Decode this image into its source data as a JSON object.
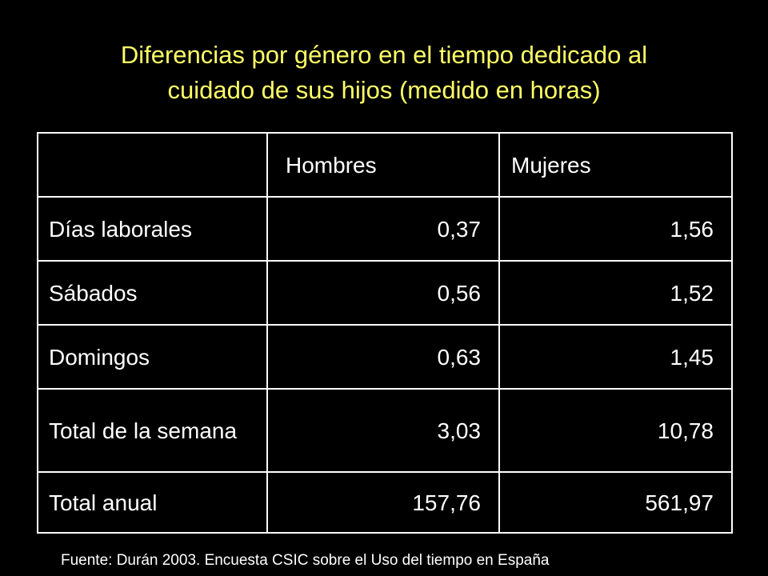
{
  "title": {
    "line1": "Diferencias por género en el tiempo dedicado al",
    "line2": "cuidado de sus hijos (medido en horas)"
  },
  "table": {
    "header": {
      "corner": "",
      "men": "Hombres",
      "women": "Mujeres"
    },
    "rows": [
      {
        "label": "Días laborales",
        "men": "0,37",
        "women": "1,56"
      },
      {
        "label": "Sábados",
        "men": "0,56",
        "women": "1,52"
      },
      {
        "label": "Domingos",
        "men": "0,63",
        "women": "1,45"
      },
      {
        "label": "Total de la semana",
        "men": "3,03",
        "women": "10,78"
      },
      {
        "label": "Total anual",
        "men": "157,76",
        "women": "561,97"
      }
    ]
  },
  "source": "Fuente: Durán 2003. Encuesta CSIC sobre el Uso del tiempo en España",
  "colors": {
    "background": "#000000",
    "title": "#FFFF66",
    "text": "#FFFFFF",
    "border": "#FFFFFF"
  }
}
